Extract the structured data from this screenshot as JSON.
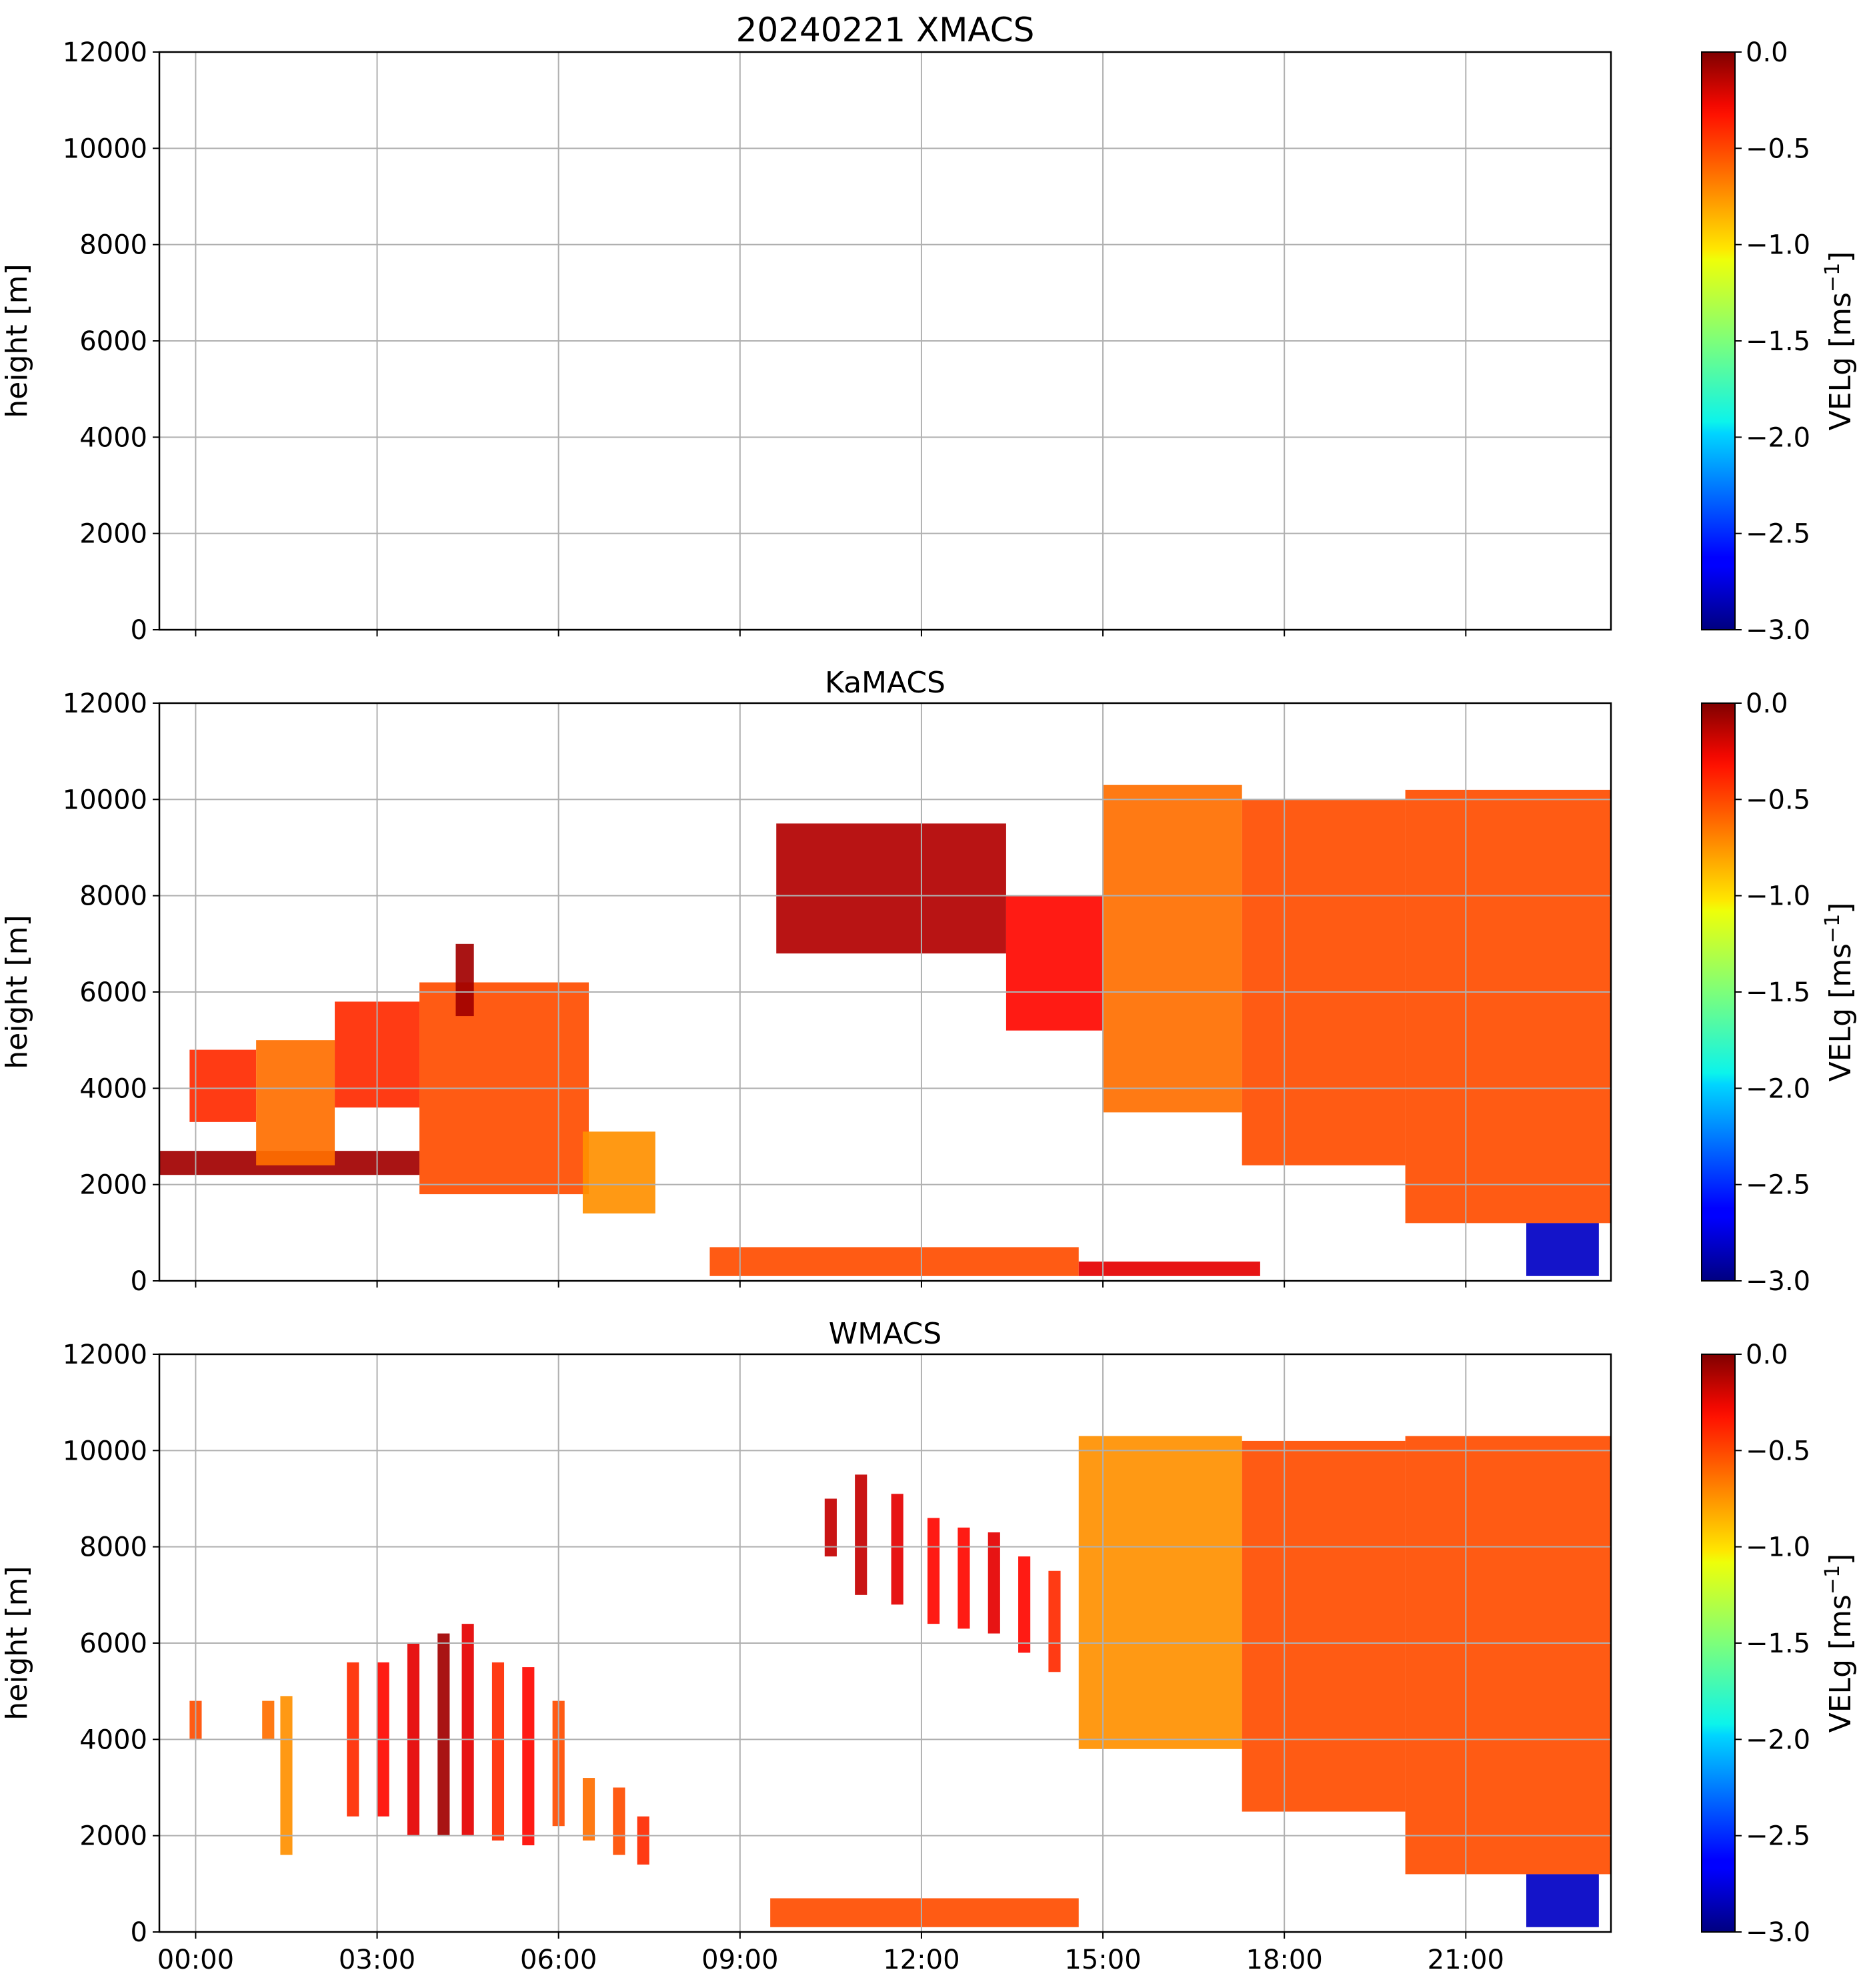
{
  "chart_data": [
    {
      "type": "heatmap",
      "title": "20240221 XMACS",
      "xlabel": "",
      "ylabel": "height [m]",
      "x_range_hours": [
        -0.6,
        23.4
      ],
      "x_ticks": [
        0,
        3,
        6,
        9,
        12,
        15,
        18,
        21
      ],
      "x_tick_labels": [
        "00:00",
        "03:00",
        "06:00",
        "09:00",
        "12:00",
        "15:00",
        "18:00",
        "21:00"
      ],
      "ylim": [
        0,
        12000
      ],
      "y_ticks": [
        0,
        2000,
        4000,
        6000,
        8000,
        10000,
        12000
      ],
      "y_tick_labels": [
        "0",
        "2000",
        "4000",
        "6000",
        "8000",
        "10000",
        "12000"
      ],
      "grid": true,
      "colorbar": {
        "label": "VELg [ms",
        "label_sup": "−1",
        "label_end": "]",
        "range": [
          -3.0,
          0.0
        ],
        "colormap": "jet",
        "ticks": [
          0.0,
          -0.5,
          -1.0,
          -1.5,
          -2.0,
          -2.5,
          -3.0
        ],
        "tick_labels": [
          "0.0",
          "−0.5",
          "−1.0",
          "−1.5",
          "−2.0",
          "−2.5",
          "−3.0"
        ]
      },
      "regions": []
    },
    {
      "type": "heatmap",
      "title": "KaMACS",
      "xlabel": "",
      "ylabel": "height [m]",
      "x_range_hours": [
        -0.6,
        23.4
      ],
      "x_ticks": [
        0,
        3,
        6,
        9,
        12,
        15,
        18,
        21
      ],
      "x_tick_labels": [
        "00:00",
        "03:00",
        "06:00",
        "09:00",
        "12:00",
        "15:00",
        "18:00",
        "21:00"
      ],
      "ylim": [
        0,
        12000
      ],
      "y_ticks": [
        0,
        2000,
        4000,
        6000,
        8000,
        10000,
        12000
      ],
      "y_tick_labels": [
        "0",
        "2000",
        "4000",
        "6000",
        "8000",
        "10000",
        "12000"
      ],
      "grid": true,
      "colorbar": {
        "label": "VELg [ms",
        "label_sup": "−1",
        "label_end": "]",
        "range": [
          -3.0,
          0.0
        ],
        "colormap": "jet",
        "ticks": [
          0.0,
          -0.5,
          -1.0,
          -1.5,
          -2.0,
          -2.5,
          -3.0
        ],
        "tick_labels": [
          "0.0",
          "−0.5",
          "−1.0",
          "−1.5",
          "−2.0",
          "−2.5",
          "−3.0"
        ]
      },
      "regions": [
        {
          "t0": -0.6,
          "t1": 3.7,
          "h0": 2200,
          "h1": 2700,
          "v": -0.1
        },
        {
          "t0": -0.1,
          "t1": 1.0,
          "h0": 3300,
          "h1": 4800,
          "v": -0.5
        },
        {
          "t0": 1.0,
          "t1": 2.3,
          "h0": 2400,
          "h1": 5000,
          "v": -0.7
        },
        {
          "t0": 2.3,
          "t1": 3.7,
          "h0": 3600,
          "h1": 5800,
          "v": -0.5
        },
        {
          "t0": 3.7,
          "t1": 6.5,
          "h0": 1800,
          "h1": 6200,
          "v": -0.6
        },
        {
          "t0": 4.3,
          "t1": 4.6,
          "h0": 5500,
          "h1": 7000,
          "v": -0.1
        },
        {
          "t0": 6.4,
          "t1": 7.6,
          "h0": 1400,
          "h1": 3100,
          "v": -0.8
        },
        {
          "t0": 8.5,
          "t1": 14.6,
          "h0": 100,
          "h1": 700,
          "v": -0.6
        },
        {
          "t0": 14.6,
          "t1": 17.6,
          "h0": 100,
          "h1": 400,
          "v": -0.3
        },
        {
          "t0": 9.6,
          "t1": 13.4,
          "h0": 6800,
          "h1": 9500,
          "v": -0.15
        },
        {
          "t0": 13.4,
          "t1": 15.0,
          "h0": 5200,
          "h1": 8000,
          "v": -0.4
        },
        {
          "t0": 15.0,
          "t1": 17.3,
          "h0": 3500,
          "h1": 10300,
          "v": -0.7
        },
        {
          "t0": 17.3,
          "t1": 20.0,
          "h0": 2400,
          "h1": 10000,
          "v": -0.6
        },
        {
          "t0": 20.0,
          "t1": 23.4,
          "h0": 1200,
          "h1": 10200,
          "v": -0.6
        },
        {
          "t0": 22.0,
          "t1": 23.2,
          "h0": 100,
          "h1": 1200,
          "v": -2.8
        }
      ]
    },
    {
      "type": "heatmap",
      "title": "WMACS",
      "xlabel": "",
      "ylabel": "height [m]",
      "x_range_hours": [
        -0.6,
        23.4
      ],
      "x_ticks": [
        0,
        3,
        6,
        9,
        12,
        15,
        18,
        21
      ],
      "x_tick_labels": [
        "00:00",
        "03:00",
        "06:00",
        "09:00",
        "12:00",
        "15:00",
        "18:00",
        "21:00"
      ],
      "ylim": [
        0,
        12000
      ],
      "y_ticks": [
        0,
        2000,
        4000,
        6000,
        8000,
        10000,
        12000
      ],
      "y_tick_labels": [
        "0",
        "2000",
        "4000",
        "6000",
        "8000",
        "10000",
        "12000"
      ],
      "grid": true,
      "colorbar": {
        "label": "VELg [ms",
        "label_sup": "−1",
        "label_end": "]",
        "range": [
          -3.0,
          0.0
        ],
        "colormap": "jet",
        "ticks": [
          0.0,
          -0.5,
          -1.0,
          -1.5,
          -2.0,
          -2.5,
          -3.0
        ],
        "tick_labels": [
          "0.0",
          "−0.5",
          "−1.0",
          "−1.5",
          "−2.0",
          "−2.5",
          "−3.0"
        ]
      },
      "regions": [
        {
          "t0": -0.1,
          "t1": 0.1,
          "h0": 4000,
          "h1": 4800,
          "v": -0.6
        },
        {
          "t0": 1.1,
          "t1": 1.3,
          "h0": 4000,
          "h1": 4800,
          "v": -0.7
        },
        {
          "t0": 1.4,
          "t1": 1.6,
          "h0": 1600,
          "h1": 4900,
          "v": -0.8
        },
        {
          "t0": 2.5,
          "t1": 2.7,
          "h0": 2400,
          "h1": 5600,
          "v": -0.5
        },
        {
          "t0": 3.0,
          "t1": 3.2,
          "h0": 2400,
          "h1": 5600,
          "v": -0.4
        },
        {
          "t0": 3.5,
          "t1": 3.7,
          "h0": 2000,
          "h1": 6000,
          "v": -0.3
        },
        {
          "t0": 4.0,
          "t1": 4.2,
          "h0": 2000,
          "h1": 6200,
          "v": -0.1
        },
        {
          "t0": 4.4,
          "t1": 4.6,
          "h0": 2000,
          "h1": 6400,
          "v": -0.3
        },
        {
          "t0": 4.9,
          "t1": 5.1,
          "h0": 1900,
          "h1": 5600,
          "v": -0.5
        },
        {
          "t0": 5.4,
          "t1": 5.6,
          "h0": 1800,
          "h1": 5500,
          "v": -0.4
        },
        {
          "t0": 5.9,
          "t1": 6.1,
          "h0": 2200,
          "h1": 4800,
          "v": -0.6
        },
        {
          "t0": 6.4,
          "t1": 6.6,
          "h0": 1900,
          "h1": 3200,
          "v": -0.7
        },
        {
          "t0": 6.9,
          "t1": 7.1,
          "h0": 1600,
          "h1": 3000,
          "v": -0.6
        },
        {
          "t0": 7.3,
          "t1": 7.5,
          "h0": 1400,
          "h1": 2400,
          "v": -0.5
        },
        {
          "t0": 10.4,
          "t1": 10.6,
          "h0": 7800,
          "h1": 9000,
          "v": -0.2
        },
        {
          "t0": 10.9,
          "t1": 11.1,
          "h0": 7000,
          "h1": 9500,
          "v": -0.2
        },
        {
          "t0": 11.5,
          "t1": 11.7,
          "h0": 6800,
          "h1": 9100,
          "v": -0.3
        },
        {
          "t0": 12.1,
          "t1": 12.3,
          "h0": 6400,
          "h1": 8600,
          "v": -0.4
        },
        {
          "t0": 12.6,
          "t1": 12.8,
          "h0": 6300,
          "h1": 8400,
          "v": -0.4
        },
        {
          "t0": 13.1,
          "t1": 13.3,
          "h0": 6200,
          "h1": 8300,
          "v": -0.3
        },
        {
          "t0": 13.6,
          "t1": 13.8,
          "h0": 5800,
          "h1": 7800,
          "v": -0.4
        },
        {
          "t0": 14.1,
          "t1": 14.3,
          "h0": 5400,
          "h1": 7500,
          "v": -0.5
        },
        {
          "t0": 9.5,
          "t1": 14.6,
          "h0": 100,
          "h1": 700,
          "v": -0.6
        },
        {
          "t0": 14.6,
          "t1": 17.3,
          "h0": 3800,
          "h1": 10300,
          "v": -0.8
        },
        {
          "t0": 17.3,
          "t1": 20.0,
          "h0": 2500,
          "h1": 10200,
          "v": -0.6
        },
        {
          "t0": 20.0,
          "t1": 23.4,
          "h0": 1200,
          "h1": 10300,
          "v": -0.6
        },
        {
          "t0": 22.0,
          "t1": 23.2,
          "h0": 100,
          "h1": 1200,
          "v": -2.8
        }
      ]
    }
  ]
}
